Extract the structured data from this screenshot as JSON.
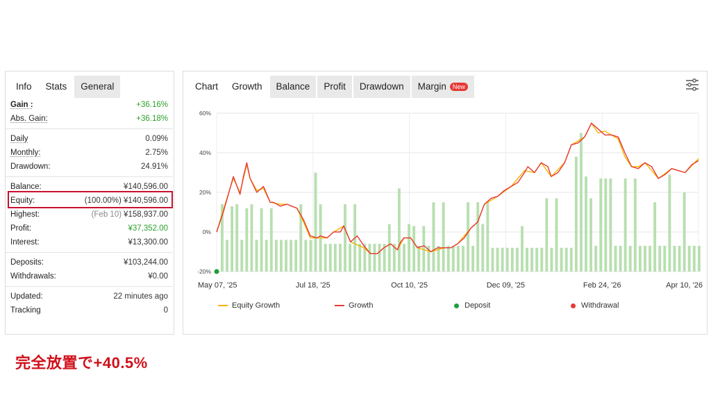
{
  "stats_panel": {
    "tabs": [
      "Info",
      "Stats",
      "General"
    ],
    "active_tab": "Info",
    "rows": {
      "gain": {
        "label": "Gain :",
        "value": "+36.16%"
      },
      "abs_gain": {
        "label": "Abs. Gain:",
        "value": "+36.18%"
      },
      "daily": {
        "label": "Daily",
        "value": "0.09%"
      },
      "monthly": {
        "label": "Monthly:",
        "value": "2.75%"
      },
      "drawdown": {
        "label": "Drawdown:",
        "value": "24.91%"
      },
      "balance": {
        "label": "Balance:",
        "value": "¥140,596.00"
      },
      "equity": {
        "label": "Equity:",
        "value": "(100.00%) ¥140,596.00"
      },
      "highest": {
        "label": "Highest:",
        "date": "(Feb 10)",
        "value": "¥158,937.00"
      },
      "profit": {
        "label": "Profit:",
        "value": "¥37,352.00"
      },
      "interest": {
        "label": "Interest:",
        "value": "¥13,300.00"
      },
      "deposits": {
        "label": "Deposits:",
        "value": "¥103,244.00"
      },
      "withdrawals": {
        "label": "Withdrawals:",
        "value": "¥0.00"
      },
      "updated": {
        "label": "Updated:",
        "value": "22 minutes ago"
      },
      "tracking": {
        "label": "Tracking",
        "value": "0"
      }
    }
  },
  "chart_panel": {
    "tabs": [
      "Chart",
      "Growth",
      "Balance",
      "Profit",
      "Drawdown",
      "Margin"
    ],
    "active_tab": "Growth",
    "new_badge": "New",
    "settings_icon": "sliders-icon"
  },
  "caption": "完全放置で+40.5%",
  "colors": {
    "gain_green": "#2ca02c",
    "growth_line": "#e53935",
    "equity_line": "#f5b400",
    "bar_fill": "#b8dfb0",
    "deposit_dot": "#1e9e3a",
    "withdrawal_dot": "#e53935",
    "highlight": "#c8102e"
  },
  "chart_data": {
    "type": "line",
    "title": "",
    "x_ticks": [
      "May 07, '25",
      "Jul 18, '25",
      "Oct 10, '25",
      "Dec 09, '25",
      "Feb 24, '26",
      "Apr 10, '26"
    ],
    "y_ticks": [
      "60%",
      "40%",
      "20%",
      "0%",
      "-20%"
    ],
    "ylim": [
      -20,
      60
    ],
    "grid": true,
    "legend_position": "bottom",
    "legend": [
      "Equity Growth",
      "Growth",
      "Deposit",
      "Withdrawal"
    ],
    "x_index_range": [
      0,
      96
    ],
    "growth": [
      [
        0,
        0
      ],
      [
        2,
        10
      ],
      [
        4,
        22
      ],
      [
        5,
        28
      ],
      [
        7,
        19
      ],
      [
        8,
        28
      ],
      [
        9,
        35
      ],
      [
        10,
        27
      ],
      [
        12,
        20
      ],
      [
        14,
        23
      ],
      [
        16,
        15
      ],
      [
        17,
        15
      ],
      [
        19,
        13
      ],
      [
        21,
        14
      ],
      [
        24,
        12
      ],
      [
        26,
        6
      ],
      [
        28,
        -2
      ],
      [
        30,
        -3
      ],
      [
        31,
        -2
      ],
      [
        33,
        -3
      ],
      [
        35,
        0
      ],
      [
        37,
        0
      ],
      [
        38,
        3
      ],
      [
        40,
        -5
      ],
      [
        42,
        -2
      ],
      [
        44,
        -7
      ],
      [
        46,
        -11
      ],
      [
        48,
        -11
      ],
      [
        50,
        -8
      ],
      [
        52,
        -6
      ],
      [
        54,
        -9
      ],
      [
        55,
        -5
      ],
      [
        56,
        -3
      ],
      [
        58,
        -3
      ],
      [
        60,
        -8
      ],
      [
        62,
        -7
      ],
      [
        64,
        -10
      ],
      [
        66,
        -8
      ],
      [
        68,
        -8
      ],
      [
        70,
        -8
      ],
      [
        72,
        -6
      ],
      [
        74,
        -3
      ],
      [
        76,
        2
      ],
      [
        78,
        5
      ],
      [
        80,
        14
      ],
      [
        82,
        17
      ],
      [
        84,
        18
      ],
      [
        86,
        21
      ],
      [
        88,
        23
      ],
      [
        90,
        25
      ],
      [
        92,
        30
      ],
      [
        93,
        33
      ],
      [
        95,
        30
      ],
      [
        97,
        35
      ],
      [
        99,
        33
      ],
      [
        100,
        28
      ],
      [
        102,
        30
      ],
      [
        104,
        35
      ],
      [
        106,
        44
      ],
      [
        108,
        45
      ],
      [
        110,
        48
      ],
      [
        112,
        55
      ],
      [
        114,
        52
      ],
      [
        116,
        49
      ],
      [
        118,
        49
      ],
      [
        120,
        48
      ],
      [
        122,
        40
      ],
      [
        124,
        33
      ],
      [
        126,
        32
      ],
      [
        128,
        35
      ],
      [
        130,
        33
      ],
      [
        132,
        27
      ],
      [
        134,
        29
      ],
      [
        136,
        32
      ],
      [
        138,
        31
      ],
      [
        140,
        30
      ],
      [
        142,
        34
      ],
      [
        144,
        36
      ]
    ],
    "equity_growth": [
      [
        0,
        0
      ],
      [
        2,
        11
      ],
      [
        4,
        22
      ],
      [
        5,
        27
      ],
      [
        7,
        20
      ],
      [
        8,
        27
      ],
      [
        9,
        34
      ],
      [
        10,
        27
      ],
      [
        12,
        21
      ],
      [
        14,
        22
      ],
      [
        16,
        15
      ],
      [
        19,
        14
      ],
      [
        21,
        14
      ],
      [
        24,
        12
      ],
      [
        26,
        5
      ],
      [
        28,
        -3
      ],
      [
        30,
        -3
      ],
      [
        33,
        -3
      ],
      [
        35,
        0
      ],
      [
        38,
        3
      ],
      [
        40,
        -5
      ],
      [
        44,
        -8
      ],
      [
        46,
        -11
      ],
      [
        48,
        -11
      ],
      [
        50,
        -8
      ],
      [
        52,
        -6
      ],
      [
        54,
        -9
      ],
      [
        56,
        -3
      ],
      [
        58,
        -3
      ],
      [
        60,
        -8
      ],
      [
        64,
        -10
      ],
      [
        68,
        -8
      ],
      [
        70,
        -8
      ],
      [
        72,
        -6
      ],
      [
        76,
        2
      ],
      [
        78,
        5
      ],
      [
        80,
        14
      ],
      [
        84,
        18
      ],
      [
        88,
        23
      ],
      [
        92,
        31
      ],
      [
        95,
        30
      ],
      [
        97,
        35
      ],
      [
        100,
        28
      ],
      [
        104,
        35
      ],
      [
        106,
        44
      ],
      [
        110,
        48
      ],
      [
        112,
        55
      ],
      [
        114,
        50
      ],
      [
        116,
        51
      ],
      [
        120,
        47
      ],
      [
        122,
        38
      ],
      [
        124,
        33
      ],
      [
        126,
        33
      ],
      [
        128,
        35
      ],
      [
        132,
        27
      ],
      [
        136,
        32
      ],
      [
        140,
        30
      ],
      [
        144,
        37
      ]
    ],
    "bars": [
      14,
      -4,
      13,
      14,
      -4,
      12,
      14,
      -4,
      12,
      -4,
      12,
      -4,
      -4,
      -4,
      -4,
      -4,
      14,
      -4,
      -4,
      30,
      14,
      -6,
      -6,
      -6,
      -6,
      14,
      -6,
      14,
      -6,
      -6,
      -6,
      -6,
      -6,
      -6,
      4,
      -6,
      22,
      -6,
      4,
      3,
      -7,
      3,
      -7,
      15,
      -7,
      15,
      -7,
      -7,
      -7,
      -7,
      15,
      -7,
      15,
      4,
      15,
      -8,
      -8,
      -8,
      -8,
      -8,
      -8,
      3,
      -8,
      -8,
      -8,
      -8,
      17,
      -8,
      17,
      -8,
      -8,
      -8,
      38,
      50,
      28,
      17,
      -7,
      27,
      27,
      27,
      -7,
      -7,
      27,
      -7,
      27,
      -7,
      -7,
      -7,
      15,
      -7,
      -7,
      29,
      -7,
      -7,
      20,
      -7,
      -7,
      -7
    ],
    "deposit": [
      [
        0,
        -20
      ]
    ]
  }
}
